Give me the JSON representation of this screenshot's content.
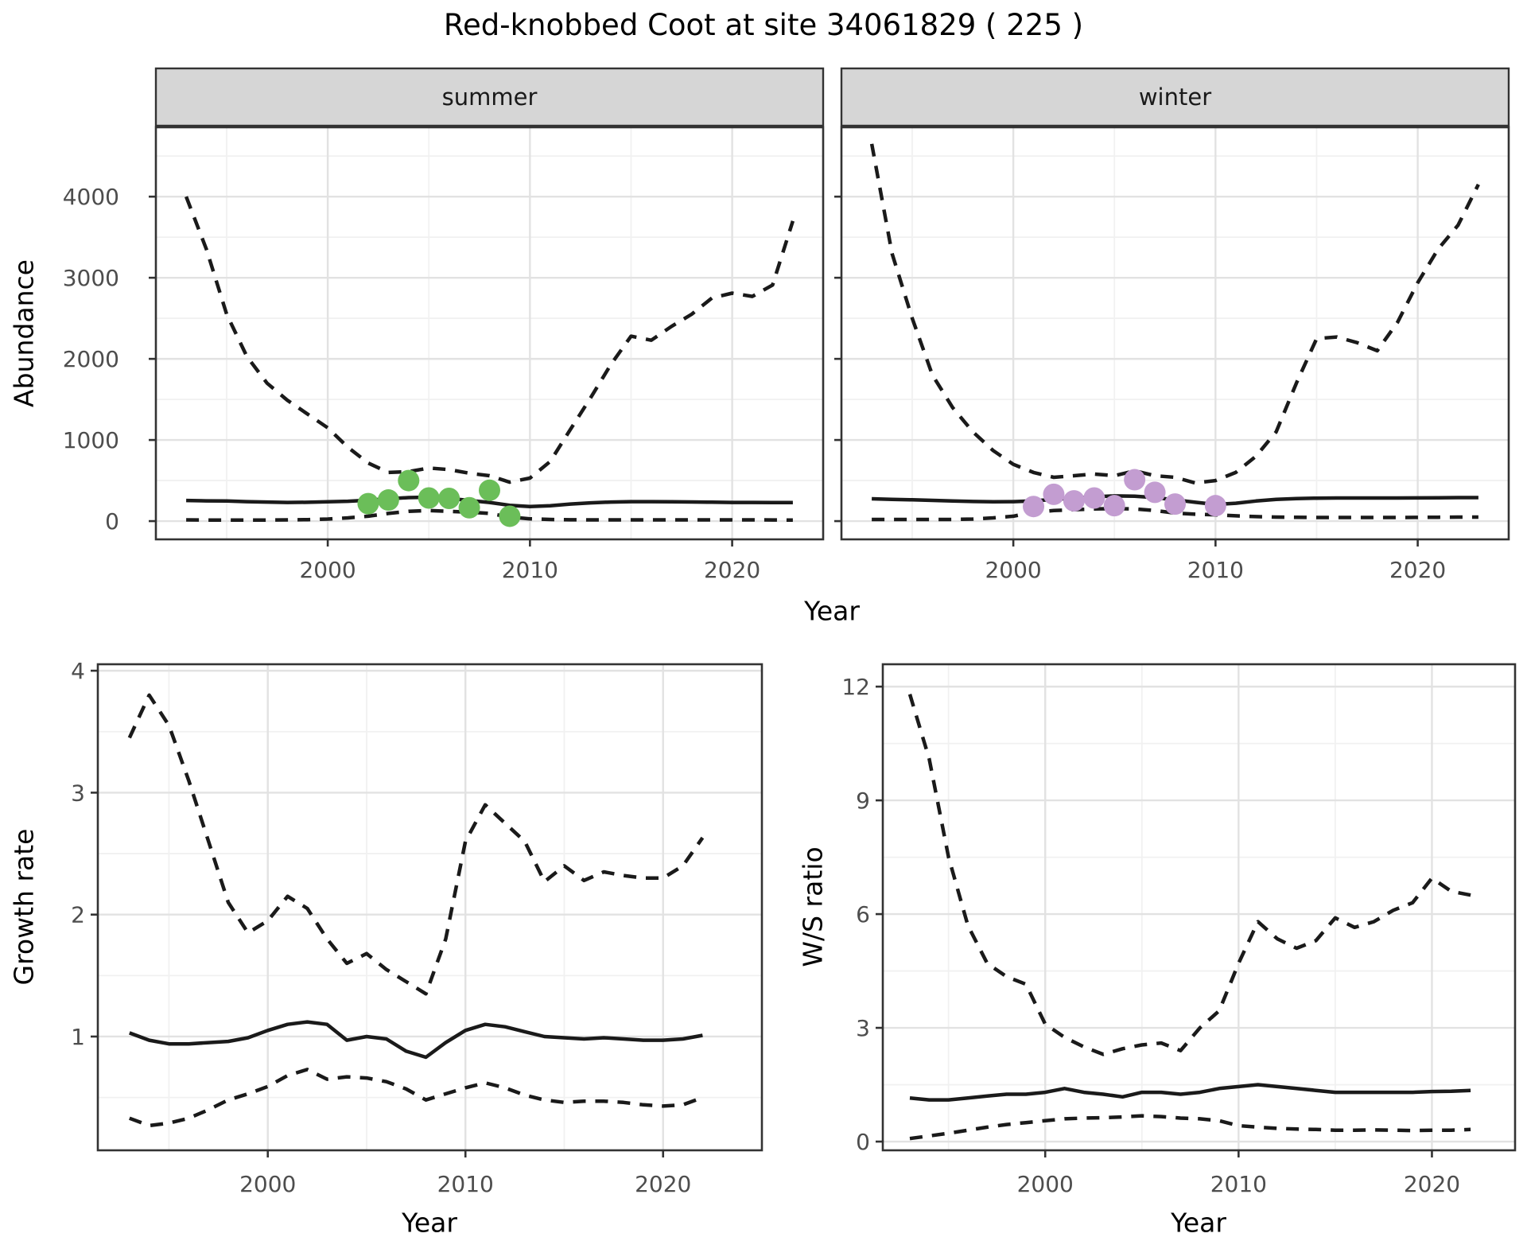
{
  "title": "Red-knobbed Coot at site 34061829 ( 225 )",
  "axis_titles": {
    "abundance": "Abundance",
    "year_top": "Year",
    "growth_rate": "Growth rate",
    "year_bottom_left": "Year",
    "ws_ratio": "W/S ratio",
    "year_bottom_right": "Year"
  },
  "colors": {
    "line": "#1A1A1A",
    "summer_points": "#6BBE59",
    "winter_points": "#C39DD1",
    "strip_fill": "#D6D6D6",
    "strip_border": "#333333",
    "panel_border": "#333333",
    "grid_major": "#E2E2E2",
    "grid_minor": "#F1F1F1",
    "axis_text": "#4D4D4D",
    "background": "#FFFFFF"
  },
  "chart_data": [
    {
      "panel_key": "abundance-summer",
      "type": "line",
      "facet_label": "summer",
      "x_label": "Year",
      "y_label": "Abundance",
      "xlim": [
        1991.5,
        2024.5
      ],
      "ylim": [
        -225,
        4855
      ],
      "x_ticks": [
        2000,
        2010,
        2020
      ],
      "y_ticks": [
        0,
        1000,
        2000,
        3000,
        4000
      ],
      "x_minor": [
        1995,
        2005,
        2015
      ],
      "y_minor": [
        500,
        1500,
        2500,
        3500,
        4500
      ],
      "show_y_tick_labels": true,
      "x": [
        1993,
        1994,
        1995,
        1996,
        1997,
        1998,
        1999,
        2000,
        2001,
        2002,
        2003,
        2004,
        2005,
        2006,
        2007,
        2008,
        2009,
        2010,
        2011,
        2012,
        2013,
        2014,
        2015,
        2016,
        2017,
        2018,
        2019,
        2020,
        2021,
        2022,
        2023
      ],
      "series": [
        {
          "name": "upper-ci",
          "style": "dashed",
          "values": [
            4000,
            3350,
            2550,
            2030,
            1700,
            1490,
            1320,
            1150,
            910,
            715,
            600,
            610,
            655,
            635,
            590,
            560,
            480,
            530,
            735,
            1130,
            1520,
            1930,
            2280,
            2230,
            2400,
            2550,
            2750,
            2810,
            2770,
            2910,
            3700
          ]
        },
        {
          "name": "median",
          "style": "solid",
          "values": [
            255,
            250,
            248,
            240,
            235,
            230,
            232,
            238,
            245,
            258,
            275,
            290,
            295,
            280,
            255,
            230,
            195,
            180,
            190,
            210,
            225,
            235,
            240,
            240,
            238,
            236,
            233,
            230,
            230,
            228,
            228
          ]
        },
        {
          "name": "lower-ci",
          "style": "dashed",
          "values": [
            15,
            13,
            12,
            12,
            13,
            15,
            18,
            25,
            40,
            60,
            95,
            120,
            130,
            120,
            110,
            95,
            50,
            28,
            20,
            16,
            15,
            15,
            15,
            15,
            15,
            15,
            15,
            15,
            15,
            14,
            12
          ]
        }
      ],
      "observations": {
        "name": "summer-counts",
        "color_key": "summer_points",
        "years": [
          2002,
          2003,
          2004,
          2005,
          2006,
          2007,
          2008,
          2009
        ],
        "values": [
          215,
          260,
          500,
          285,
          280,
          165,
          380,
          60
        ]
      }
    },
    {
      "panel_key": "abundance-winter",
      "type": "line",
      "facet_label": "winter",
      "x_label": "Year",
      "y_label": "Abundance",
      "xlim": [
        1991.5,
        2024.5
      ],
      "ylim": [
        -225,
        4855
      ],
      "x_ticks": [
        2000,
        2010,
        2020
      ],
      "y_ticks": [
        0,
        1000,
        2000,
        3000,
        4000
      ],
      "x_minor": [
        1995,
        2005,
        2015
      ],
      "y_minor": [
        500,
        1500,
        2500,
        3500,
        4500
      ],
      "show_y_tick_labels": false,
      "x": [
        1993,
        1994,
        1995,
        1996,
        1997,
        1998,
        1999,
        2000,
        2001,
        2002,
        2003,
        2004,
        2005,
        2006,
        2007,
        2008,
        2009,
        2010,
        2011,
        2012,
        2013,
        2014,
        2015,
        2016,
        2017,
        2018,
        2019,
        2020,
        2021,
        2022,
        2023
      ],
      "series": [
        {
          "name": "upper-ci",
          "style": "dashed",
          "values": [
            4650,
            3300,
            2500,
            1800,
            1400,
            1100,
            870,
            700,
            600,
            540,
            560,
            580,
            560,
            620,
            560,
            540,
            470,
            500,
            600,
            800,
            1100,
            1700,
            2250,
            2270,
            2200,
            2100,
            2450,
            2940,
            3350,
            3650,
            4150
          ]
        },
        {
          "name": "median",
          "style": "solid",
          "values": [
            275,
            268,
            262,
            256,
            248,
            242,
            238,
            240,
            250,
            268,
            285,
            300,
            310,
            308,
            290,
            262,
            232,
            206,
            220,
            248,
            268,
            278,
            283,
            285,
            285,
            285,
            285,
            286,
            288,
            290,
            290
          ]
        },
        {
          "name": "lower-ci",
          "style": "dashed",
          "values": [
            20,
            20,
            20,
            20,
            20,
            25,
            40,
            60,
            110,
            130,
            140,
            150,
            155,
            150,
            130,
            100,
            85,
            78,
            65,
            55,
            50,
            47,
            45,
            45,
            45,
            45,
            45,
            46,
            48,
            50,
            50
          ]
        }
      ],
      "observations": {
        "name": "winter-counts",
        "color_key": "winter_points",
        "years": [
          2001,
          2002,
          2003,
          2004,
          2005,
          2006,
          2007,
          2008,
          2010
        ],
        "values": [
          180,
          330,
          250,
          285,
          190,
          510,
          355,
          210,
          190
        ]
      }
    },
    {
      "panel_key": "growth-rate",
      "type": "line",
      "facet_label": null,
      "x_label": "Year",
      "y_label": "Growth rate",
      "xlim": [
        1991.4,
        2025.0
      ],
      "ylim": [
        0.067,
        4.053
      ],
      "x_ticks": [
        2000,
        2010,
        2020
      ],
      "y_ticks": [
        1,
        2,
        3,
        4
      ],
      "x_minor": [
        1995,
        2005,
        2015
      ],
      "y_minor": [
        0.5,
        1.5,
        2.5,
        3.5
      ],
      "show_y_tick_labels": true,
      "x": [
        1993,
        1994,
        1995,
        1996,
        1997,
        1998,
        1999,
        2000,
        2001,
        2002,
        2003,
        2004,
        2005,
        2006,
        2007,
        2008,
        2009,
        2010,
        2011,
        2012,
        2013,
        2014,
        2015,
        2016,
        2017,
        2018,
        2019,
        2020,
        2021,
        2022
      ],
      "series": [
        {
          "name": "upper-ci",
          "style": "dashed",
          "values": [
            3.45,
            3.8,
            3.55,
            3.1,
            2.6,
            2.1,
            1.85,
            1.95,
            2.15,
            2.05,
            1.8,
            1.6,
            1.68,
            1.55,
            1.45,
            1.35,
            1.8,
            2.6,
            2.9,
            2.75,
            2.6,
            2.27,
            2.4,
            2.28,
            2.35,
            2.32,
            2.3,
            2.3,
            2.4,
            2.63
          ]
        },
        {
          "name": "median",
          "style": "solid",
          "values": [
            1.03,
            0.97,
            0.94,
            0.94,
            0.95,
            0.96,
            0.99,
            1.05,
            1.1,
            1.12,
            1.1,
            0.97,
            1.0,
            0.98,
            0.88,
            0.83,
            0.95,
            1.05,
            1.1,
            1.08,
            1.04,
            1.0,
            0.99,
            0.98,
            0.99,
            0.98,
            0.97,
            0.97,
            0.98,
            1.01
          ]
        },
        {
          "name": "lower-ci",
          "style": "dashed",
          "values": [
            0.33,
            0.27,
            0.29,
            0.33,
            0.4,
            0.48,
            0.53,
            0.59,
            0.68,
            0.73,
            0.65,
            0.67,
            0.66,
            0.63,
            0.57,
            0.48,
            0.53,
            0.58,
            0.62,
            0.58,
            0.52,
            0.48,
            0.46,
            0.47,
            0.47,
            0.46,
            0.44,
            0.43,
            0.44,
            0.5
          ]
        }
      ],
      "observations": null
    },
    {
      "panel_key": "ws-ratio",
      "type": "line",
      "facet_label": null,
      "x_label": "Year",
      "y_label": "W/S ratio",
      "xlim": [
        1991.6,
        2024.3
      ],
      "ylim": [
        -0.23,
        12.59
      ],
      "x_ticks": [
        2000,
        2010,
        2020
      ],
      "y_ticks": [
        0,
        3,
        6,
        9,
        12
      ],
      "x_minor": [
        1995,
        2005,
        2015
      ],
      "y_minor": [
        1.5,
        4.5,
        7.5,
        10.5
      ],
      "show_y_tick_labels": true,
      "x": [
        1993,
        1994,
        1995,
        1996,
        1997,
        1998,
        1999,
        2000,
        2001,
        2002,
        2003,
        2004,
        2005,
        2006,
        2007,
        2008,
        2009,
        2010,
        2011,
        2012,
        2013,
        2014,
        2015,
        2016,
        2017,
        2018,
        2019,
        2020,
        2021,
        2022
      ],
      "series": [
        {
          "name": "upper-ci",
          "style": "dashed",
          "values": [
            11.8,
            10.1,
            7.5,
            5.7,
            4.7,
            4.35,
            4.15,
            3.1,
            2.75,
            2.5,
            2.3,
            2.45,
            2.55,
            2.6,
            2.4,
            3.0,
            3.45,
            4.7,
            5.8,
            5.35,
            5.1,
            5.3,
            5.9,
            5.65,
            5.8,
            6.1,
            6.3,
            6.95,
            6.6,
            6.5
          ]
        },
        {
          "name": "median",
          "style": "solid",
          "values": [
            1.15,
            1.1,
            1.1,
            1.15,
            1.2,
            1.25,
            1.25,
            1.3,
            1.4,
            1.3,
            1.25,
            1.18,
            1.3,
            1.3,
            1.25,
            1.3,
            1.4,
            1.45,
            1.5,
            1.45,
            1.4,
            1.35,
            1.3,
            1.3,
            1.3,
            1.3,
            1.3,
            1.32,
            1.33,
            1.35
          ]
        },
        {
          "name": "lower-ci",
          "style": "dashed",
          "values": [
            0.08,
            0.15,
            0.22,
            0.3,
            0.38,
            0.45,
            0.5,
            0.55,
            0.6,
            0.62,
            0.63,
            0.65,
            0.68,
            0.66,
            0.62,
            0.6,
            0.55,
            0.42,
            0.38,
            0.35,
            0.33,
            0.32,
            0.3,
            0.3,
            0.31,
            0.3,
            0.29,
            0.3,
            0.3,
            0.32
          ]
        }
      ],
      "observations": null
    }
  ]
}
